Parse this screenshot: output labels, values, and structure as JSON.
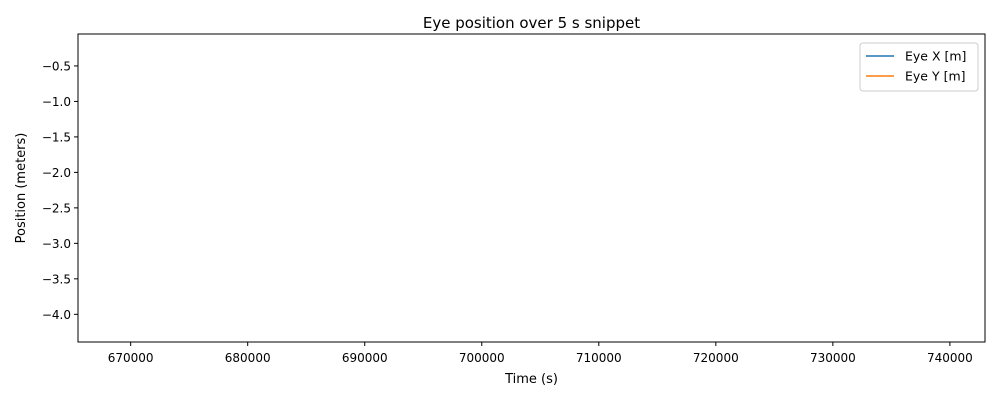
{
  "chart_data": {
    "type": "line",
    "title": "Eye position over 5 s snippet",
    "xlabel": "Time (s)",
    "ylabel": "Position (meters)",
    "xlim": [
      665500,
      743000
    ],
    "ylim": [
      -4.39,
      -0.05
    ],
    "xticks": [
      670000,
      680000,
      690000,
      700000,
      710000,
      720000,
      730000,
      740000
    ],
    "yticks": [
      -0.5,
      -1.0,
      -1.5,
      -2.0,
      -2.5,
      -3.0,
      -3.5,
      -4.0
    ],
    "xtick_labels": [
      "670000",
      "680000",
      "690000",
      "700000",
      "710000",
      "720000",
      "730000",
      "740000"
    ],
    "ytick_labels": [
      "−0.5",
      "−1.0",
      "−1.5",
      "−2.0",
      "−2.5",
      "−3.0",
      "−3.5",
      "−4.0"
    ],
    "grid": false,
    "legend_position": "top-right",
    "series": [
      {
        "name": "Eye X [m]",
        "color": "#1f77b4",
        "x": [],
        "y": []
      },
      {
        "name": "Eye Y [m]",
        "color": "#ff7f0e",
        "x": [],
        "y": []
      }
    ]
  }
}
